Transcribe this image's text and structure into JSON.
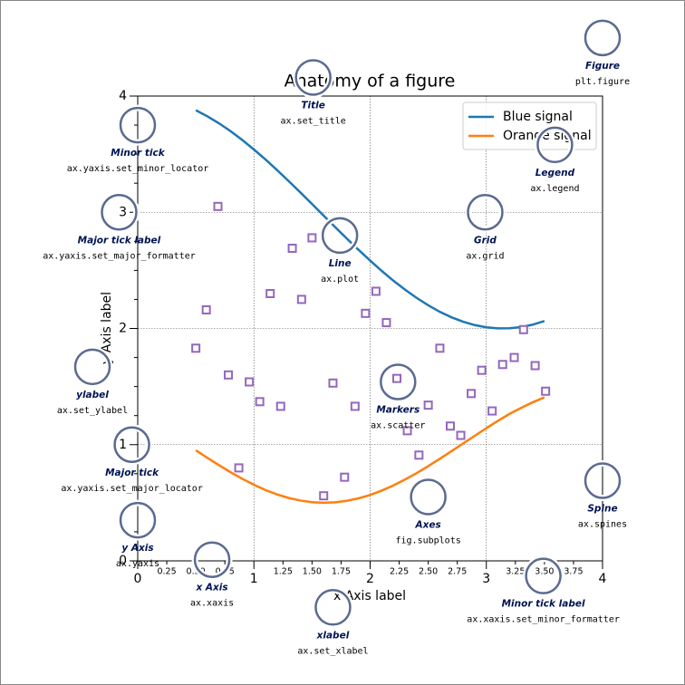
{
  "chart_data": {
    "type": "line",
    "title": "Anatomy of a figure",
    "xlabel": "x Axis label",
    "ylabel": "y Axis label",
    "xlim": [
      0,
      4
    ],
    "ylim": [
      0,
      4
    ],
    "xticks": [
      0,
      1,
      2,
      3,
      4
    ],
    "yticks": [
      0,
      1,
      2,
      3,
      4
    ],
    "x_minor_ticks": [
      0.25,
      {
        "value": 0.5,
        "label": "0.50"
      },
      0.75,
      1.25,
      {
        "value": 1.5,
        "label": "1.50"
      },
      1.75,
      2.25,
      {
        "value": 2.5,
        "label": "2.50"
      },
      2.75,
      3.25,
      {
        "value": 3.5,
        "label": "3.50"
      },
      3.75
    ],
    "y_minor_ticks": [
      0.25,
      0.5,
      0.75,
      1.25,
      1.5,
      1.75,
      2.25,
      2.5,
      2.75,
      3.25,
      3.5,
      3.75
    ],
    "grid": true,
    "legend": "upper right",
    "series": [
      {
        "name": "Blue signal",
        "color": "#1f77b4",
        "x": [
          0.5,
          0.6,
          0.7,
          0.8,
          0.9,
          1.0,
          1.1,
          1.2,
          1.3,
          1.4,
          1.5,
          1.6,
          1.7,
          1.8,
          1.9,
          2.0,
          2.1,
          2.2,
          2.3,
          2.4,
          2.5,
          2.6,
          2.7,
          2.8,
          2.9,
          3.0,
          3.1,
          3.2,
          3.3,
          3.4,
          3.5
        ],
        "values": [
          3.878,
          3.825,
          3.765,
          3.697,
          3.622,
          3.54,
          3.454,
          3.362,
          3.267,
          3.17,
          3.071,
          2.971,
          2.871,
          2.773,
          2.677,
          2.584,
          2.495,
          2.411,
          2.334,
          2.263,
          2.199,
          2.143,
          2.096,
          2.058,
          2.029,
          2.01,
          2.001,
          2.002,
          2.012,
          2.033,
          2.064
        ]
      },
      {
        "name": "Orange signal",
        "color": "#ff7f0e",
        "x": [
          0.5,
          0.6,
          0.7,
          0.8,
          0.9,
          1.0,
          1.1,
          1.2,
          1.3,
          1.4,
          1.5,
          1.6,
          1.7,
          1.8,
          1.9,
          2.0,
          2.1,
          2.2,
          2.3,
          2.4,
          2.5,
          2.6,
          2.7,
          2.8,
          2.9,
          3.0,
          3.1,
          3.2,
          3.3,
          3.4,
          3.5
        ],
        "values": [
          0.952,
          0.886,
          0.823,
          0.762,
          0.706,
          0.655,
          0.609,
          0.572,
          0.541,
          0.519,
          0.505,
          0.5,
          0.504,
          0.517,
          0.538,
          0.567,
          0.605,
          0.649,
          0.7,
          0.755,
          0.815,
          0.879,
          0.944,
          1.01,
          1.076,
          1.142,
          1.205,
          1.265,
          1.317,
          1.365,
          1.407
        ]
      },
      {
        "type": "scatter",
        "color": "#9467bd",
        "x": [
          0.5,
          0.59,
          0.69,
          0.78,
          0.87,
          0.96,
          1.05,
          1.14,
          1.23,
          1.33,
          1.41,
          1.5,
          1.6,
          1.68,
          1.78,
          1.87,
          1.96,
          2.05,
          2.14,
          2.23,
          2.32,
          2.42,
          2.5,
          2.6,
          2.69,
          2.78,
          2.87,
          2.96,
          3.05,
          3.14,
          3.24,
          3.32,
          3.42,
          3.51
        ],
        "values": [
          1.83,
          2.16,
          3.05,
          1.6,
          0.8,
          1.54,
          1.37,
          2.3,
          1.33,
          2.69,
          2.25,
          2.78,
          0.56,
          1.53,
          0.72,
          1.33,
          2.13,
          2.32,
          2.05,
          1.57,
          1.12,
          0.91,
          1.34,
          1.83,
          1.16,
          1.08,
          1.44,
          1.64,
          1.29,
          1.69,
          1.75,
          1.99,
          1.68,
          1.46
        ]
      }
    ],
    "annotations": [
      {
        "label": "Figure",
        "code": "plt.figure",
        "x": 4.0,
        "y": 4.5
      },
      {
        "label": "Title",
        "code": "ax.set_title",
        "x": 1.51,
        "y": 4.16
      },
      {
        "label": "Minor tick",
        "code": "ax.yaxis.set_minor_locator",
        "x": 0.0,
        "y": 3.75
      },
      {
        "label": "Legend",
        "code": "ax.legend",
        "x": 3.59,
        "y": 3.58
      },
      {
        "label": "Major tick label",
        "code": "ax.yaxis.set_major_formatter",
        "x": -0.16,
        "y": 3.0
      },
      {
        "label": "Grid",
        "code": "ax.grid",
        "x": 2.99,
        "y": 3.0
      },
      {
        "label": "Line",
        "code": "ax.plot",
        "x": 1.74,
        "y": 2.8
      },
      {
        "label": "ylabel",
        "code": "ax.set_ylabel",
        "x": -0.39,
        "y": 1.67
      },
      {
        "label": "Markers",
        "code": "ax.scatter",
        "x": 2.24,
        "y": 1.54
      },
      {
        "label": "Major tick",
        "code": "ax.yaxis.set_major_locator",
        "x": -0.05,
        "y": 1.0
      },
      {
        "label": "Spine",
        "code": "ax.spines",
        "x": 4.0,
        "y": 0.69
      },
      {
        "label": "Axes",
        "code": "fig.subplots",
        "x": 2.5,
        "y": 0.55
      },
      {
        "label": "y Axis",
        "code": "ax.yaxis",
        "x": 0.0,
        "y": 0.35
      },
      {
        "label": "x Axis",
        "code": "ax.xaxis",
        "x": 0.64,
        "y": 0.01
      },
      {
        "label": "Minor tick label",
        "code": "ax.xaxis.set_minor_formatter",
        "x": 3.49,
        "y": -0.13
      },
      {
        "label": "xlabel",
        "code": "ax.set_xlabel",
        "x": 1.68,
        "y": -0.4
      }
    ]
  }
}
